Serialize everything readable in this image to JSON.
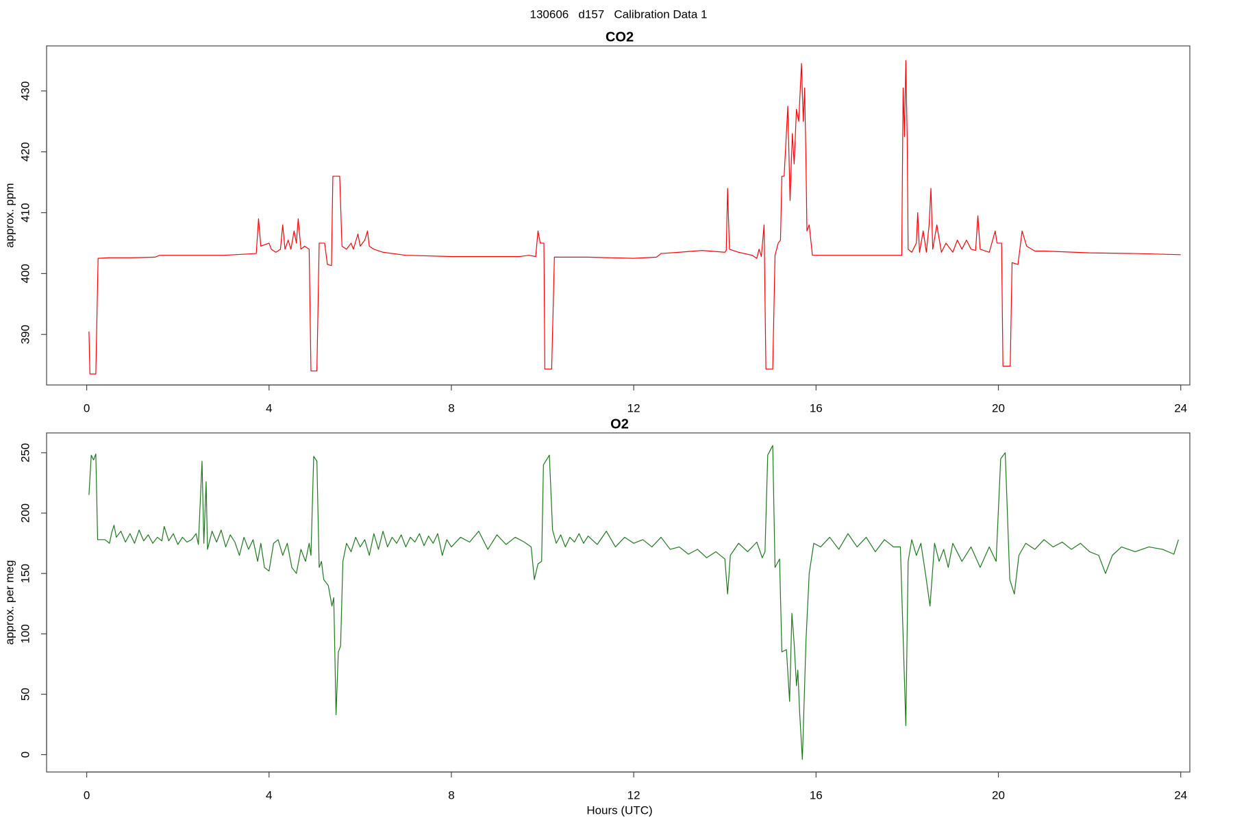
{
  "title": "130606   d157   Calibration Data 1",
  "chart_data": [
    {
      "type": "line",
      "title": "CO2",
      "ylabel": "approx. ppm",
      "color": "#ff0000",
      "xlim": [
        -0.88,
        24.2
      ],
      "ylim": [
        381.7,
        437.4
      ],
      "xticks": [
        0,
        4,
        8,
        12,
        16,
        20,
        24
      ],
      "yticks": [
        390,
        400,
        410,
        420,
        430
      ],
      "x": [
        0.05,
        0.07,
        0.2,
        0.25,
        0.5,
        1,
        1.5,
        1.6,
        2,
        2.5,
        3,
        3.5,
        3.72,
        3.77,
        3.82,
        4.0,
        4.05,
        4.15,
        4.25,
        4.3,
        4.35,
        4.42,
        4.48,
        4.55,
        4.6,
        4.64,
        4.7,
        4.78,
        4.88,
        4.92,
        5.05,
        5.1,
        5.22,
        5.28,
        5.37,
        5.4,
        5.55,
        5.6,
        5.7,
        5.8,
        5.85,
        5.95,
        6.0,
        6.1,
        6.16,
        6.2,
        6.3,
        6.5,
        7,
        8,
        9,
        9.5,
        9.7,
        9.85,
        9.9,
        9.95,
        10.03,
        10.05,
        10.2,
        10.26,
        11,
        12,
        12.5,
        12.6,
        13,
        13.5,
        14,
        14.03,
        14.06,
        14.1,
        14.3,
        14.6,
        14.7,
        14.75,
        14.8,
        14.86,
        14.9,
        15.05,
        15.1,
        15.17,
        15.22,
        15.25,
        15.3,
        15.38,
        15.43,
        15.48,
        15.52,
        15.57,
        15.62,
        15.68,
        15.72,
        15.75,
        15.78,
        15.8,
        15.85,
        15.92,
        16.5,
        17,
        17.5,
        17.88,
        17.91,
        17.94,
        17.97,
        18.0,
        18.02,
        18.1,
        18.2,
        18.23,
        18.27,
        18.35,
        18.42,
        18.48,
        18.52,
        18.56,
        18.65,
        18.75,
        18.85,
        19.0,
        19.1,
        19.2,
        19.3,
        19.4,
        19.5,
        19.55,
        19.6,
        19.8,
        19.93,
        19.97,
        20.07,
        20.1,
        20.26,
        20.3,
        20.43,
        20.52,
        20.62,
        20.8,
        21,
        22,
        23,
        24
      ],
      "values": [
        390.5,
        383.5,
        383.5,
        402.5,
        402.6,
        402.6,
        402.7,
        403,
        403,
        403,
        403,
        403.2,
        403.3,
        409,
        404.5,
        405,
        404,
        403.5,
        404,
        408,
        404,
        405.5,
        404,
        407,
        405,
        409,
        404,
        404.5,
        404,
        384,
        384,
        405,
        405,
        401.5,
        401.3,
        416,
        416,
        404.5,
        404,
        405,
        404,
        406.5,
        404.5,
        405.5,
        407,
        404.5,
        404,
        403.5,
        403,
        402.8,
        402.8,
        402.8,
        403,
        402.8,
        407,
        405,
        405,
        384.3,
        384.3,
        402.7,
        402.7,
        402.5,
        402.7,
        403.3,
        403.5,
        403.8,
        403.5,
        403.8,
        414,
        404,
        403.5,
        403,
        402.5,
        404,
        402.8,
        408,
        384.3,
        384.3,
        403,
        405,
        405.5,
        416,
        416,
        427.5,
        412,
        423,
        418,
        427,
        425,
        434.5,
        425,
        430.5,
        418,
        407,
        408,
        403,
        403,
        403,
        403,
        403,
        430.5,
        422.5,
        435,
        422,
        404,
        403.5,
        405,
        410,
        403.5,
        407,
        403.5,
        408,
        414,
        404,
        408,
        403.5,
        405,
        403.5,
        405.5,
        404,
        405.5,
        404,
        403.8,
        409.5,
        404,
        403.5,
        407,
        405,
        405,
        384.8,
        384.8,
        401.8,
        401.5,
        407,
        404.5,
        403.7,
        403.7,
        403.4,
        403.3,
        403.1
      ]
    },
    {
      "type": "line",
      "title": "O2",
      "ylabel": "approx. per meg",
      "xlabel": "Hours (UTC)",
      "color": "#1a7a1a",
      "xlim": [
        -0.88,
        24.2
      ],
      "ylim": [
        -14.4,
        266.4
      ],
      "xticks": [
        0,
        4,
        8,
        12,
        16,
        20,
        24
      ],
      "yticks": [
        0,
        50,
        100,
        150,
        200,
        250
      ],
      "x": [
        0.05,
        0.1,
        0.15,
        0.2,
        0.24,
        0.4,
        0.5,
        0.55,
        0.6,
        0.65,
        0.75,
        0.85,
        0.95,
        1.05,
        1.15,
        1.25,
        1.35,
        1.45,
        1.55,
        1.65,
        1.7,
        1.8,
        1.9,
        2.0,
        2.1,
        2.2,
        2.3,
        2.4,
        2.45,
        2.53,
        2.57,
        2.62,
        2.65,
        2.75,
        2.85,
        2.95,
        3.05,
        3.15,
        3.25,
        3.35,
        3.45,
        3.55,
        3.65,
        3.75,
        3.82,
        3.9,
        4.0,
        4.1,
        4.2,
        4.3,
        4.4,
        4.5,
        4.6,
        4.7,
        4.8,
        4.88,
        4.92,
        4.98,
        5.05,
        5.1,
        5.15,
        5.2,
        5.3,
        5.38,
        5.42,
        5.47,
        5.52,
        5.57,
        5.62,
        5.7,
        5.8,
        5.9,
        6.0,
        6.1,
        6.2,
        6.3,
        6.4,
        6.5,
        6.6,
        6.7,
        6.8,
        6.9,
        7.0,
        7.1,
        7.2,
        7.3,
        7.4,
        7.5,
        7.6,
        7.7,
        7.8,
        7.9,
        8.0,
        8.2,
        8.4,
        8.6,
        8.8,
        9.0,
        9.2,
        9.4,
        9.6,
        9.75,
        9.82,
        9.9,
        9.98,
        10.02,
        10.15,
        10.22,
        10.3,
        10.4,
        10.5,
        10.6,
        10.7,
        10.8,
        10.9,
        11.0,
        11.2,
        11.4,
        11.6,
        11.8,
        12.0,
        12.2,
        12.4,
        12.6,
        12.8,
        13.0,
        13.2,
        13.4,
        13.6,
        13.8,
        14.0,
        14.06,
        14.12,
        14.3,
        14.5,
        14.7,
        14.82,
        14.88,
        14.94,
        15.05,
        15.1,
        15.2,
        15.25,
        15.35,
        15.42,
        15.47,
        15.52,
        15.57,
        15.6,
        15.64,
        15.7,
        15.78,
        15.85,
        15.95,
        16.1,
        16.3,
        16.5,
        16.7,
        16.9,
        17.1,
        17.3,
        17.5,
        17.7,
        17.85,
        17.97,
        18.02,
        18.1,
        18.2,
        18.3,
        18.4,
        18.5,
        18.6,
        18.7,
        18.8,
        18.9,
        19.0,
        19.2,
        19.4,
        19.6,
        19.8,
        19.95,
        20.05,
        20.15,
        20.25,
        20.35,
        20.45,
        20.6,
        20.8,
        21.0,
        21.2,
        21.4,
        21.6,
        21.8,
        22.0,
        22.2,
        22.35,
        22.5,
        22.7,
        23.0,
        23.3,
        23.6,
        23.85,
        23.95
      ],
      "values": [
        215,
        248,
        244,
        249,
        178,
        178,
        175,
        184,
        190,
        180,
        185,
        176,
        183,
        175,
        186,
        177,
        182,
        175,
        180,
        177,
        189,
        177,
        183,
        174,
        180,
        176,
        178,
        183,
        174,
        243,
        175,
        226,
        170,
        185,
        176,
        186,
        172,
        182,
        176,
        165,
        180,
        170,
        178,
        160,
        175,
        155,
        152,
        175,
        178,
        165,
        175,
        155,
        150,
        170,
        160,
        175,
        165,
        247,
        243,
        155,
        160,
        145,
        140,
        123,
        130,
        33,
        85,
        90,
        160,
        175,
        168,
        180,
        172,
        178,
        165,
        183,
        170,
        185,
        172,
        180,
        175,
        182,
        172,
        180,
        176,
        183,
        173,
        181,
        175,
        183,
        165,
        178,
        172,
        180,
        176,
        185,
        170,
        182,
        174,
        180,
        176,
        172,
        145,
        158,
        160,
        240,
        248,
        186,
        175,
        182,
        172,
        180,
        176,
        183,
        175,
        181,
        174,
        185,
        172,
        180,
        175,
        178,
        172,
        180,
        170,
        172,
        166,
        170,
        163,
        168,
        162,
        133,
        165,
        175,
        168,
        176,
        163,
        168,
        248,
        256,
        155,
        162,
        85,
        87,
        44,
        117,
        92,
        57,
        70,
        35,
        -4,
        95,
        150,
        175,
        172,
        180,
        170,
        183,
        172,
        180,
        168,
        178,
        172,
        172,
        24,
        160,
        178,
        165,
        175,
        150,
        123,
        175,
        160,
        170,
        155,
        175,
        160,
        172,
        155,
        172,
        160,
        245,
        250,
        145,
        133,
        165,
        175,
        170,
        178,
        172,
        176,
        170,
        175,
        168,
        165,
        150,
        165,
        172,
        168,
        172,
        170,
        166,
        178
      ]
    }
  ]
}
